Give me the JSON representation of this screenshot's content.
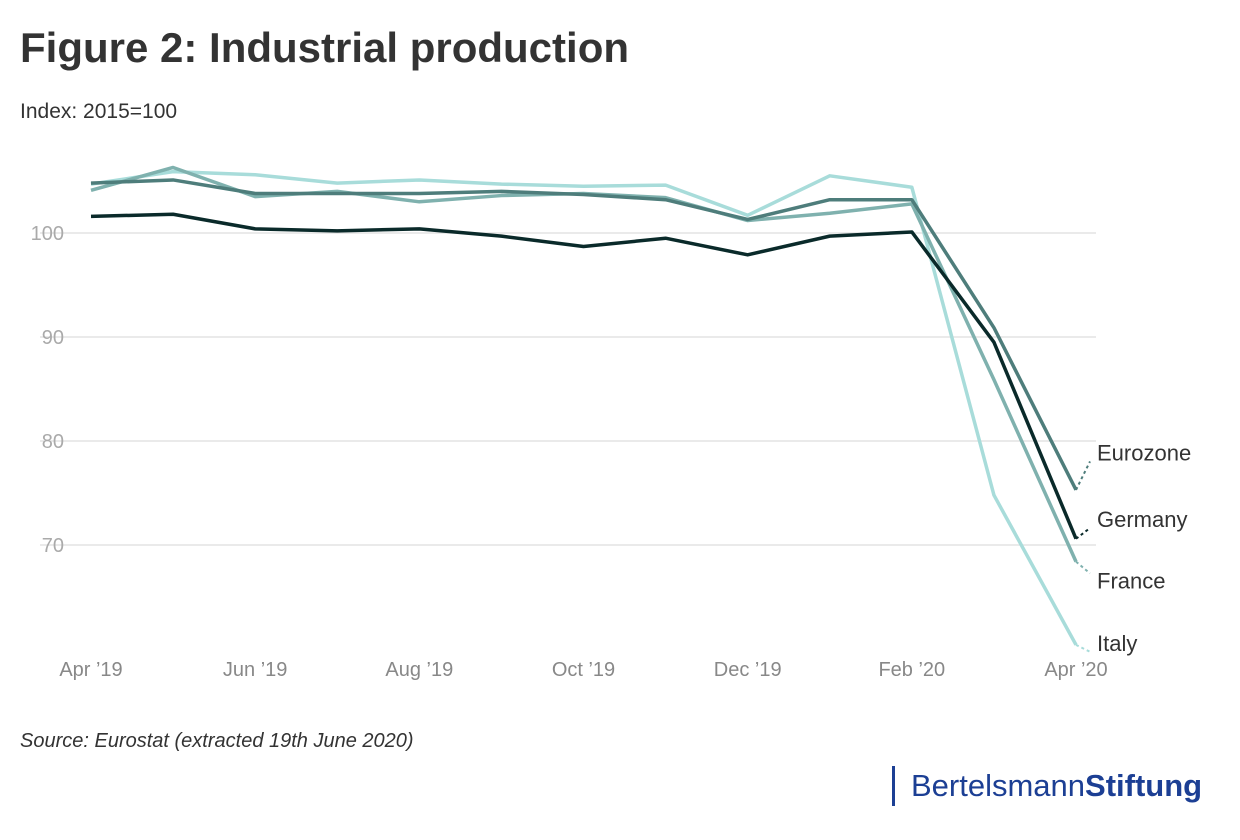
{
  "title": "Figure 2: Industrial production",
  "subtitle": "Index: 2015=100",
  "source": "Source: Eurostat (extracted 19th June 2020)",
  "logo": {
    "part1": "Bertelsmann",
    "part2": "Stiftung"
  },
  "chart_data": {
    "type": "line",
    "title": "Figure 2: Industrial production",
    "ylabel": "Index: 2015=100",
    "x": [
      "Apr 2019",
      "May 2019",
      "Jun 2019",
      "Jul 2019",
      "Aug 2019",
      "Sep 2019",
      "Oct 2019",
      "Nov 2019",
      "Dec 2019",
      "Jan 2020",
      "Feb 2020",
      "Mar 2020",
      "Apr 2020"
    ],
    "xtick_labels": [
      "Apr ’19",
      "Jun ’19",
      "Aug ’19",
      "Oct ’19",
      "Dec ’19",
      "Feb ’20",
      "Apr ’20"
    ],
    "xtick_index": [
      0,
      2,
      4,
      6,
      8,
      10,
      12
    ],
    "yticks": [
      70,
      80,
      90,
      100
    ],
    "ylim": [
      59,
      114
    ],
    "grid": true,
    "series": [
      {
        "name": "Italy",
        "color": "#a8dcda",
        "values": [
          104.7,
          105.9,
          105.6,
          104.8,
          105.1,
          104.7,
          104.5,
          104.6,
          101.7,
          105.5,
          104.4,
          74.8,
          60.4
        ]
      },
      {
        "name": "France",
        "color": "#7fb1ae",
        "values": [
          104.1,
          106.3,
          103.5,
          104.0,
          103.0,
          103.6,
          103.8,
          103.4,
          101.2,
          101.9,
          102.8,
          85.9,
          68.4
        ]
      },
      {
        "name": "Eurozone",
        "color": "#4e7d7b",
        "values": [
          104.8,
          105.1,
          103.8,
          103.8,
          103.8,
          104.0,
          103.7,
          103.2,
          101.3,
          103.2,
          103.2,
          90.9,
          75.3
        ]
      },
      {
        "name": "Germany",
        "color": "#0a2a2a",
        "values": [
          101.6,
          101.8,
          100.4,
          100.2,
          100.4,
          99.7,
          98.7,
          99.5,
          97.9,
          99.7,
          100.1,
          89.5,
          70.6
        ]
      }
    ],
    "label_values": {
      "Eurozone": 78.8,
      "Germany": 72.4,
      "France": 66.5,
      "Italy": 60.5
    }
  }
}
